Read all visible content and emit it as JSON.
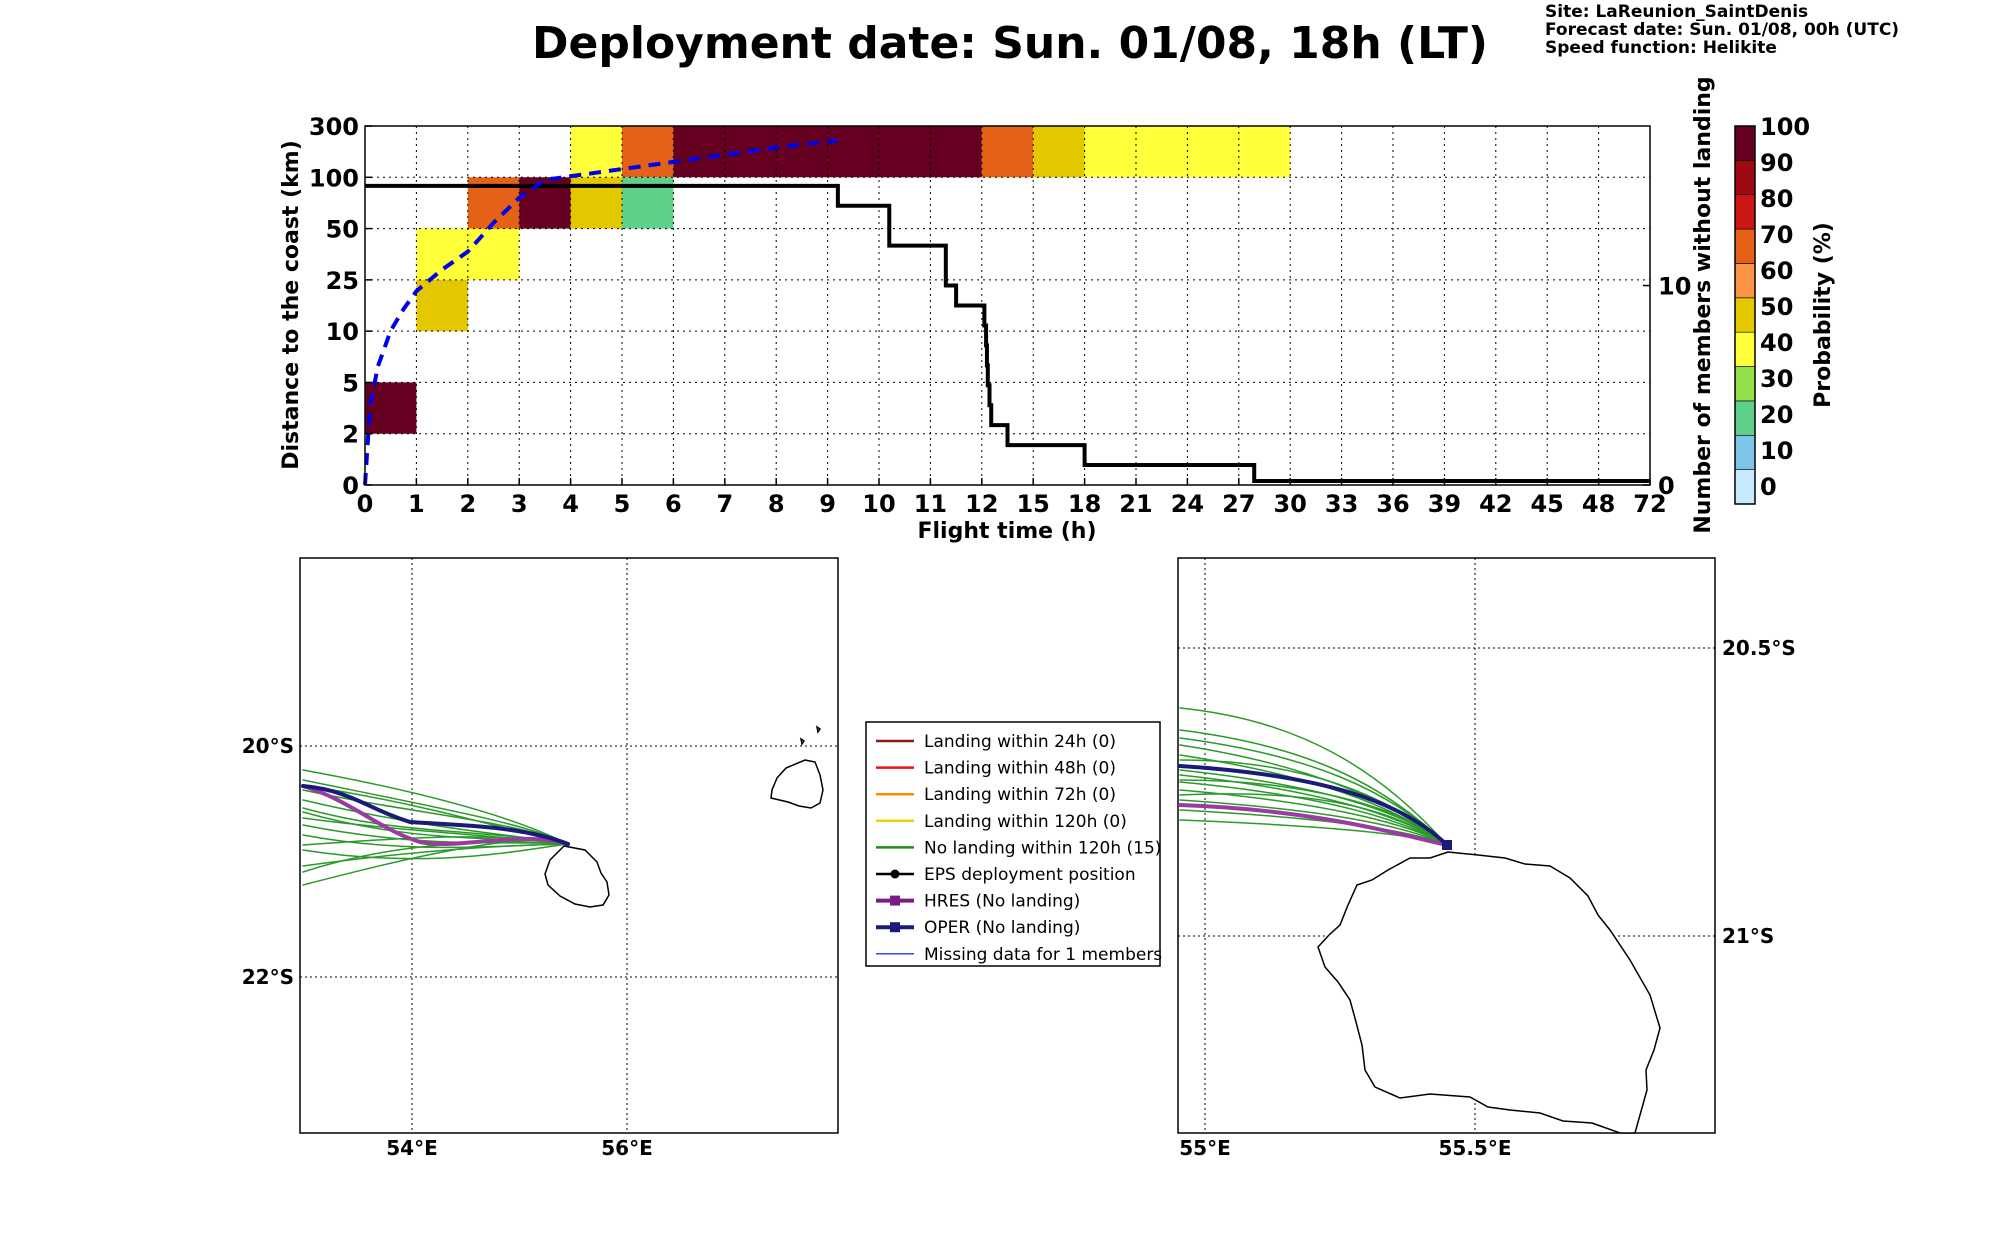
{
  "header": {
    "title": "Deployment date: Sun. 01/08, 18h (LT)",
    "site": "Site: LaReunion_SaintDenis",
    "forecast": "Forecast date: Sun. 01/08, 00h (UTC)",
    "speed": "Speed function: Helikite"
  },
  "chart_data": [
    {
      "type": "heatmap",
      "xlabel": "Flight time (h)",
      "ylabel": "Distance to the coast (km)",
      "y2label": "Number of members without landing",
      "x_ticks": [
        "0",
        "1",
        "2",
        "3",
        "4",
        "5",
        "6",
        "7",
        "8",
        "9",
        "10",
        "11",
        "12",
        "15",
        "18",
        "21",
        "24",
        "27",
        "30",
        "33",
        "36",
        "39",
        "42",
        "45",
        "48",
        "72"
      ],
      "y_ticks": [
        "0",
        "2",
        "5",
        "10",
        "25",
        "50",
        "100",
        "300"
      ],
      "y2_ticks": [
        {
          "label": "0",
          "value": 0
        },
        {
          "label": "10",
          "value": 10
        }
      ],
      "grid": true,
      "cells": [
        {
          "x": [
            0,
            1
          ],
          "y": [
            "2",
            "5"
          ],
          "prob": 95
        },
        {
          "x": [
            1,
            2
          ],
          "y": [
            "10",
            "25"
          ],
          "prob": 45
        },
        {
          "x": [
            1,
            3
          ],
          "y": [
            "25",
            "50"
          ],
          "prob": 30
        },
        {
          "x": [
            2,
            3
          ],
          "y": [
            "50",
            "100"
          ],
          "prob": 62
        },
        {
          "x": [
            3,
            4
          ],
          "y": [
            "50",
            "100"
          ],
          "prob": 95
        },
        {
          "x": [
            4,
            5
          ],
          "y": [
            "50",
            "100"
          ],
          "prob": 45
        },
        {
          "x": [
            5,
            6
          ],
          "y": [
            "50",
            "100"
          ],
          "prob": 15
        },
        {
          "x": [
            4,
            5
          ],
          "y": [
            "100",
            "300"
          ],
          "prob": 30
        },
        {
          "x": [
            5,
            6
          ],
          "y": [
            "100",
            "300"
          ],
          "prob": 65
        },
        {
          "x": [
            6,
            12
          ],
          "y": [
            "100",
            "300"
          ],
          "prob": 95
        },
        {
          "x": [
            12,
            15
          ],
          "y": [
            "100",
            "300"
          ],
          "prob": 65
        },
        {
          "x": [
            15,
            18
          ],
          "y": [
            "100",
            "300"
          ],
          "prob": 45
        },
        {
          "x": [
            18,
            30
          ],
          "y": [
            "100",
            "300"
          ],
          "prob": 30
        }
      ],
      "members_without_landing": {
        "x": [
          0,
          9,
          9.2,
          10,
          10.2,
          11,
          11.3,
          11.5,
          12,
          12.15,
          12.25,
          12.3,
          12.35,
          12.45,
          12.55,
          12.75,
          13.5,
          14.9,
          18,
          27.9,
          72
        ],
        "y": [
          15,
          15,
          14,
          14,
          12,
          12,
          10,
          9,
          9,
          8,
          7,
          6,
          5,
          4,
          3,
          3,
          2,
          2,
          1,
          0.2,
          0.2
        ]
      },
      "mean_distance_curve": {
        "x": [
          0,
          0.1,
          0.25,
          0.5,
          0.75,
          1,
          1.5,
          2,
          2.5,
          3,
          3.5,
          4,
          5,
          6,
          7,
          8,
          9.2
        ],
        "y_norm": [
          0,
          0.22,
          0.33,
          0.43,
          0.49,
          0.54,
          0.6,
          0.65,
          0.73,
          0.8,
          0.85,
          0.86,
          0.88,
          0.9,
          0.92,
          0.94,
          0.96
        ]
      },
      "colorbar": {
        "title": "Probability (%)",
        "ticks": [
          "0",
          "10",
          "20",
          "30",
          "40",
          "50",
          "60",
          "70",
          "80",
          "90",
          "100"
        ],
        "bins": [
          "#c6eafc",
          "#7ec4e6",
          "#5ed08a",
          "#95df4b",
          "#ffff3a",
          "#e3c800",
          "#fc9448",
          "#e56118",
          "#cc1515",
          "#9e0a14",
          "#660020"
        ]
      }
    }
  ],
  "legend": {
    "items": [
      {
        "label": "Landing within 24h (0)",
        "color": "#8b1a1a",
        "kind": "line"
      },
      {
        "label": "Landing within 48h (0)",
        "color": "#ee1111",
        "kind": "line"
      },
      {
        "label": "Landing within 72h (0)",
        "color": "#ff8800",
        "kind": "line"
      },
      {
        "label": "Landing within 120h (0)",
        "color": "#f0d000",
        "kind": "line"
      },
      {
        "label": "No landing within 120h (15)",
        "color": "#1e8c1e",
        "kind": "line"
      },
      {
        "label": "EPS deployment position",
        "color": "#000000",
        "kind": "dot"
      },
      {
        "label": "HRES (No landing)",
        "color": "#7d1a86",
        "kind": "square"
      },
      {
        "label": "OPER (No landing)",
        "color": "#1a1a7a",
        "kind": "square"
      },
      {
        "label": "Missing data for 1 members",
        "color": "#3f3fff",
        "kind": "thin"
      }
    ]
  },
  "map_left": {
    "lon_labels": [
      "54°E",
      "56°E"
    ],
    "lat_labels": [
      "20°S",
      "22°S"
    ]
  },
  "map_right": {
    "lon_labels": [
      "55°E",
      "55.5°E"
    ],
    "lat_labels": [
      "20.5°S",
      "21°S"
    ]
  }
}
